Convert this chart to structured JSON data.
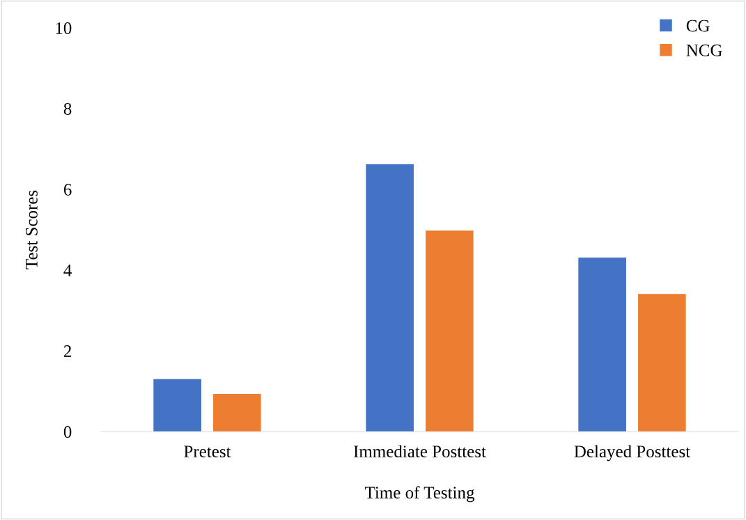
{
  "chart_data": {
    "type": "bar",
    "xlabel": "Time of Testing",
    "ylabel": "Test Scores",
    "categories": [
      "Pretest",
      "Immediate Posttest",
      "Delayed Posttest"
    ],
    "series": [
      {
        "name": "CG",
        "color": "#4472c4",
        "values": [
          1.3,
          6.62,
          4.31
        ]
      },
      {
        "name": "NCG",
        "color": "#ed7d31",
        "values": [
          0.93,
          4.98,
          3.41
        ]
      }
    ],
    "ylim": [
      0,
      10
    ],
    "yticks": [
      0,
      2,
      4,
      6,
      8,
      10
    ],
    "grid": false,
    "legend": "top right"
  }
}
